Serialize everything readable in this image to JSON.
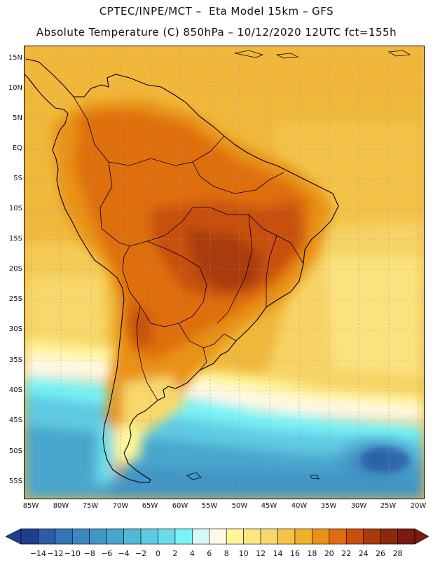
{
  "header": {
    "line1": "CPTEC/INPE/MCT –  Eta Model 15km – GFS",
    "line2": "Absolute Temperature (C) 850hPa – 10/12/2020 12UTC fct=155h"
  },
  "axes": {
    "lat_labels": [
      "15N",
      "10N",
      "5N",
      "EQ",
      "5S",
      "10S",
      "15S",
      "20S",
      "25S",
      "30S",
      "35S",
      "40S",
      "45S",
      "50S",
      "55S"
    ],
    "lon_labels": [
      "85W",
      "80W",
      "75W",
      "70W",
      "65W",
      "60W",
      "55W",
      "50W",
      "45W",
      "40W",
      "35W",
      "30W",
      "25W",
      "20W"
    ]
  },
  "colorbar": {
    "labels": [
      "-14",
      "-12",
      "-10",
      "-8",
      "-6",
      "-4",
      "-2",
      "0",
      "2",
      "4",
      "6",
      "8",
      "10",
      "12",
      "14",
      "16",
      "18",
      "20",
      "22",
      "24",
      "26",
      "28"
    ],
    "colors": [
      "#1f3f8c",
      "#2c5da6",
      "#3574b4",
      "#3d86bf",
      "#4196c6",
      "#48a6cd",
      "#53b8d8",
      "#5fcbe3",
      "#6adbe9",
      "#78f3f6",
      "#d6f6fa",
      "#fff8e6",
      "#fff59a",
      "#fbe684",
      "#f8d86c",
      "#f4c44a",
      "#efb02c",
      "#e99219",
      "#df6e10",
      "#c84f0c",
      "#a93a0c",
      "#8c2a0c",
      "#7a1b12"
    ]
  },
  "colors": {
    "frame": "#000000",
    "grid": "#9a9a9a",
    "coast": "#000000"
  }
}
